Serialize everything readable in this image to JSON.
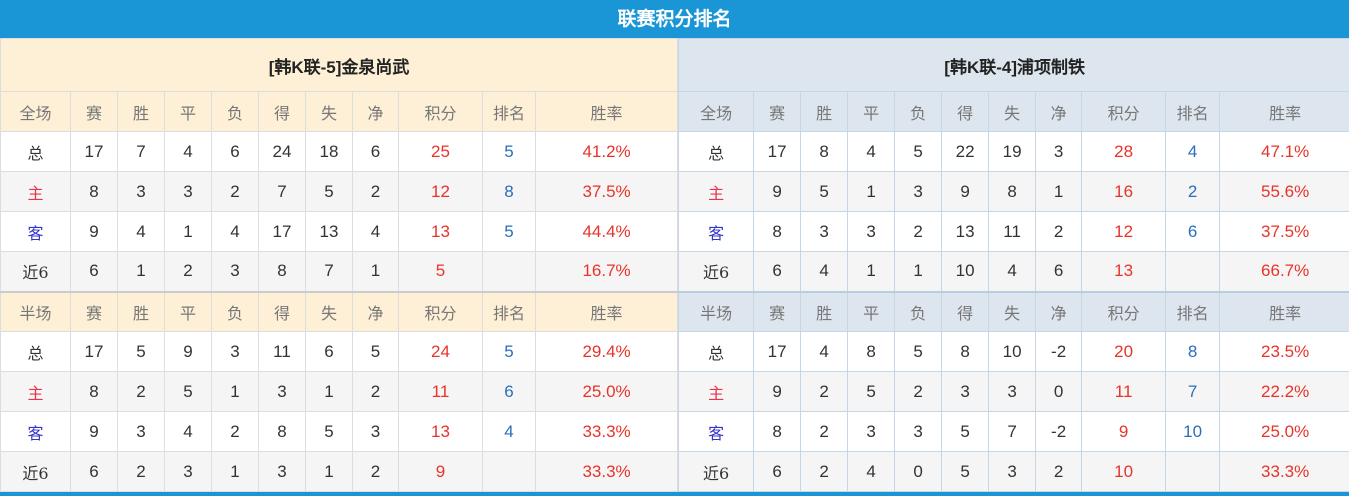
{
  "title": "联赛积分排名",
  "headers_full": [
    "全场",
    "赛",
    "胜",
    "平",
    "负",
    "得",
    "失",
    "净",
    "积分",
    "排名",
    "胜率"
  ],
  "headers_half": [
    "半场",
    "赛",
    "胜",
    "平",
    "负",
    "得",
    "失",
    "净",
    "积分",
    "排名",
    "胜率"
  ],
  "teams": [
    {
      "name": "[韩K联-5]金泉尚武",
      "full": [
        [
          "总",
          "17",
          "7",
          "4",
          "6",
          "24",
          "18",
          "6",
          "25",
          "5",
          "41.2%"
        ],
        [
          "主",
          "8",
          "3",
          "3",
          "2",
          "7",
          "5",
          "2",
          "12",
          "8",
          "37.5%"
        ],
        [
          "客",
          "9",
          "4",
          "1",
          "4",
          "17",
          "13",
          "4",
          "13",
          "5",
          "44.4%"
        ],
        [
          "近6",
          "6",
          "1",
          "2",
          "3",
          "8",
          "7",
          "1",
          "5",
          "",
          "16.7%"
        ]
      ],
      "half": [
        [
          "总",
          "17",
          "5",
          "9",
          "3",
          "11",
          "6",
          "5",
          "24",
          "5",
          "29.4%"
        ],
        [
          "主",
          "8",
          "2",
          "5",
          "1",
          "3",
          "1",
          "2",
          "11",
          "6",
          "25.0%"
        ],
        [
          "客",
          "9",
          "3",
          "4",
          "2",
          "8",
          "5",
          "3",
          "13",
          "4",
          "33.3%"
        ],
        [
          "近6",
          "6",
          "2",
          "3",
          "1",
          "3",
          "1",
          "2",
          "9",
          "",
          "33.3%"
        ]
      ]
    },
    {
      "name": "[韩K联-4]浦项制铁",
      "full": [
        [
          "总",
          "17",
          "8",
          "4",
          "5",
          "22",
          "19",
          "3",
          "28",
          "4",
          "47.1%"
        ],
        [
          "主",
          "9",
          "5",
          "1",
          "3",
          "9",
          "8",
          "1",
          "16",
          "2",
          "55.6%"
        ],
        [
          "客",
          "8",
          "3",
          "3",
          "2",
          "13",
          "11",
          "2",
          "12",
          "6",
          "37.5%"
        ],
        [
          "近6",
          "6",
          "4",
          "1",
          "1",
          "10",
          "4",
          "6",
          "13",
          "",
          "66.7%"
        ]
      ],
      "half": [
        [
          "总",
          "17",
          "4",
          "8",
          "5",
          "8",
          "10",
          "-2",
          "20",
          "8",
          "23.5%"
        ],
        [
          "主",
          "9",
          "2",
          "5",
          "2",
          "3",
          "3",
          "0",
          "11",
          "7",
          "22.2%"
        ],
        [
          "客",
          "8",
          "2",
          "3",
          "3",
          "5",
          "7",
          "-2",
          "9",
          "10",
          "25.0%"
        ],
        [
          "近6",
          "6",
          "2",
          "4",
          "0",
          "5",
          "3",
          "2",
          "10",
          "",
          "33.3%"
        ]
      ]
    }
  ],
  "colors": {
    "title_bg": "#1a96d6",
    "points": "#e8332a",
    "rank": "#2a6ebd",
    "home": "#e8334a",
    "away": "#3434c8"
  }
}
